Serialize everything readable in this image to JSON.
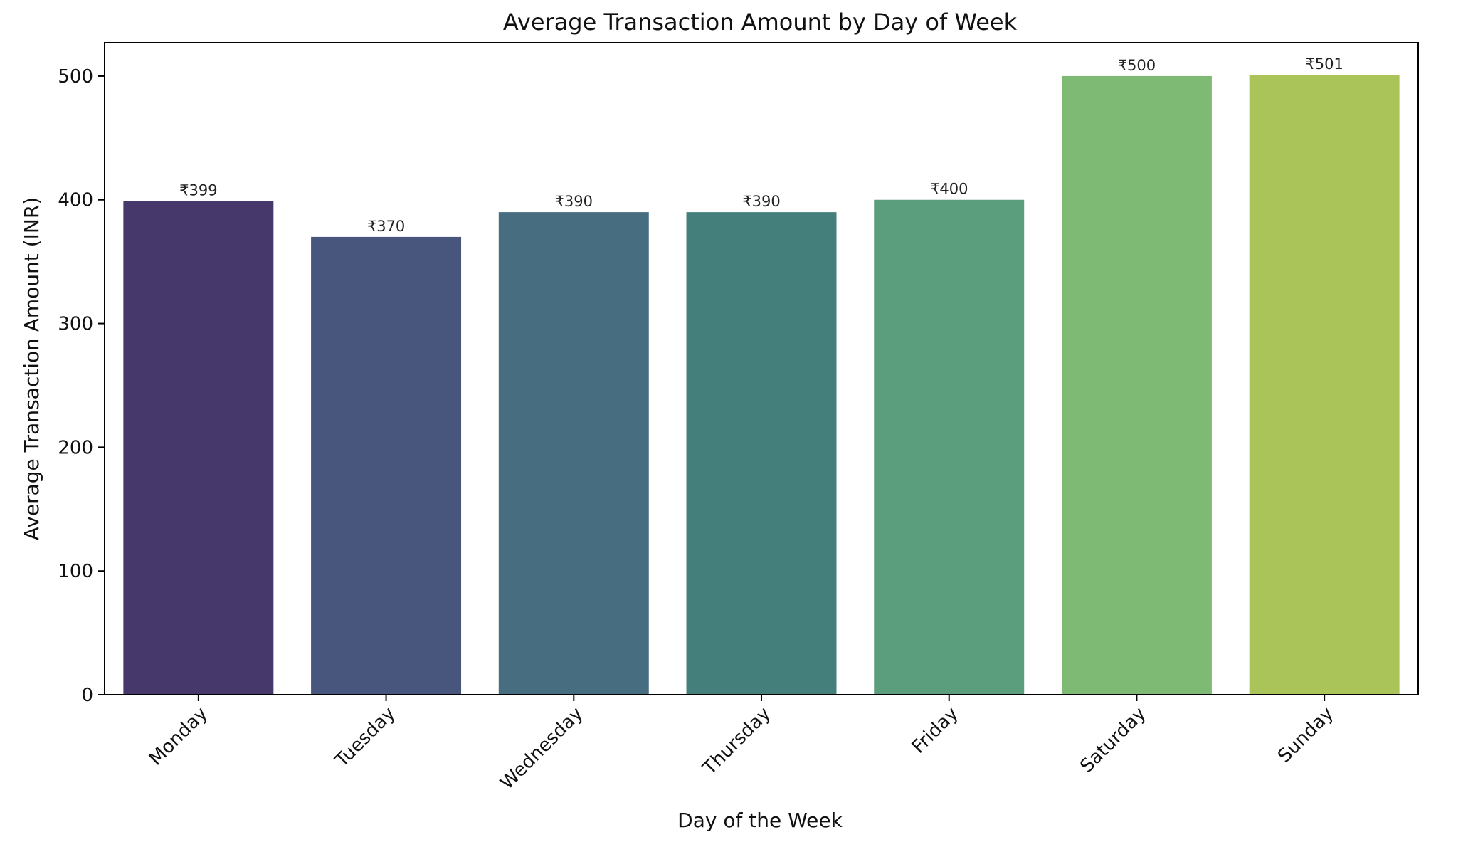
{
  "chart_data": {
    "type": "bar",
    "title": "Average Transaction Amount by Day of Week",
    "xlabel": "Day of the Week",
    "ylabel": "Average Transaction Amount (INR)",
    "categories": [
      "Monday",
      "Tuesday",
      "Wednesday",
      "Thursday",
      "Friday",
      "Saturday",
      "Sunday"
    ],
    "values": [
      399,
      370,
      390,
      390,
      400,
      500,
      501
    ],
    "data_labels": [
      "₹399",
      "₹370",
      "₹390",
      "₹390",
      "₹400",
      "₹500",
      "₹501"
    ],
    "colors": [
      "#47386b",
      "#48567d",
      "#466d80",
      "#457f7b",
      "#5a9e7e",
      "#7eba74",
      "#abc45a"
    ],
    "ylim": [
      0,
      527
    ],
    "yticks": [
      0,
      100,
      200,
      300,
      400,
      500
    ],
    "grid": false,
    "legend": "none"
  }
}
